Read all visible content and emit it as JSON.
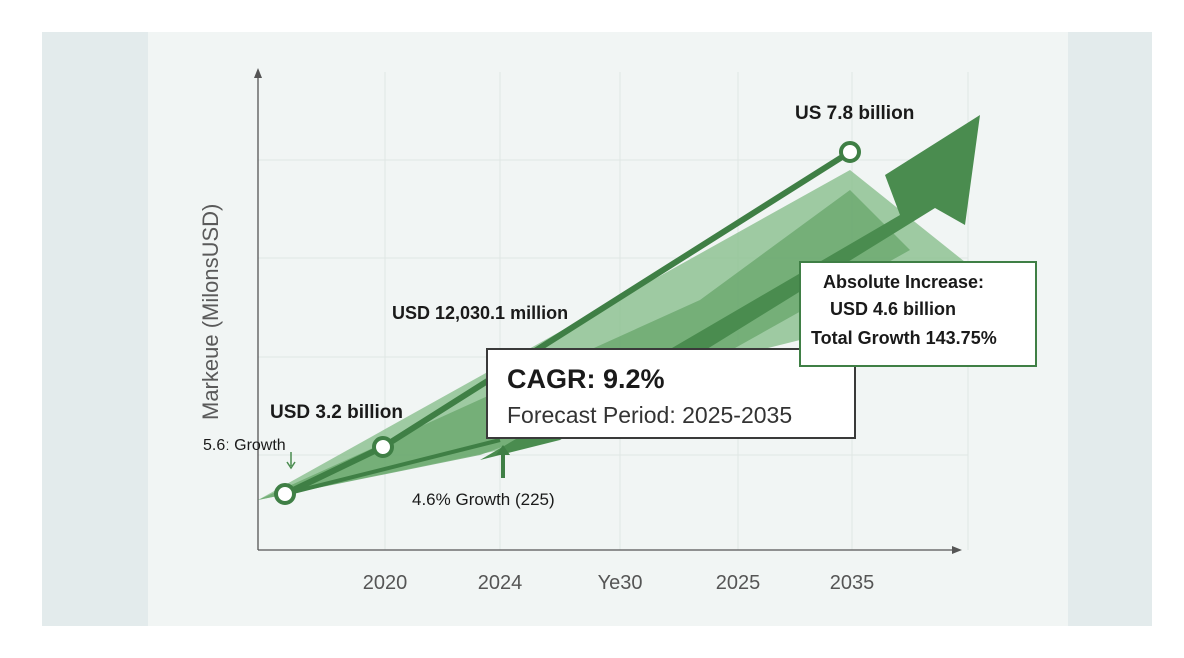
{
  "chart_data": {
    "type": "line",
    "ylabel": "Markeue (MilonsUSD)",
    "xlabel": "",
    "categories": [
      "2020",
      "2024",
      "Ye30",
      "2025",
      "2035"
    ],
    "grid": true,
    "legend": "none",
    "points": [
      {
        "label": ""
      },
      {
        "label": "USD 3.2 billion"
      },
      {
        "label": "US 7.8 billion"
      }
    ],
    "annotations": {
      "mid_value": "USD 12,030.1 million",
      "growth_left": "5.6ː Growth",
      "growth_bottom": "4.6% Growth (225)",
      "cagr_title": "CAGR: 9.2%",
      "cagr_period": "Forecast Period: 2025-2035",
      "increase_line1": "Absolute Increase:",
      "increase_line2": "USD 4.6 billion",
      "increase_line3": "Total Growth 143.75%"
    },
    "colors": {
      "line": "#3f7f45",
      "fill_light": "#8cc08f",
      "fill_mid": "#6aa86e",
      "arrow": "#4a8c4f",
      "background": "#e6eeee",
      "panel": "#f1f5f4"
    }
  }
}
